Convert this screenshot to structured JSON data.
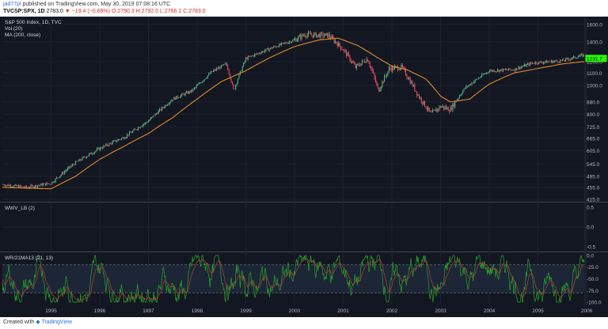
{
  "header": {
    "user": "jad77pl",
    "published": " published on TradingView.com, May 30, 2019 07:08:16 UTC",
    "symbol": "TVCSP:SPX, 1D",
    "last": "2783.0",
    "change": "▼ −19.4 (−0.69%)",
    "ohlc": "O:2790.3 H:2792.0 L:2766.1 C:2783.0"
  },
  "footer": {
    "created_with": "Created with",
    "brand": "TradingView"
  },
  "panes": {
    "main": {
      "legend": [
        "S&P 500 Index, 1D, TVC",
        "Vol (20)",
        "MA (200, close)"
      ]
    },
    "wwv": {
      "legend": "WWV_LB (2)"
    },
    "wr": {
      "legend": "WR/21MA13 (21, 13)"
    }
  },
  "colors": {
    "background": "#131722",
    "up_candle": "#53b987",
    "down_candle": "#eb4d5c",
    "ma_line": "#e08a2a",
    "price_badge": "#26ff00",
    "osc_green": "#29a329",
    "osc_red": "#c23a3a"
  },
  "chart_data": [
    {
      "type": "line",
      "title": "S&P 500 Index, 1D, TVC",
      "scale": "log",
      "y_ticks": [
        1600.0,
        1400.0,
        1200.0,
        1100.0,
        1000.0,
        880.0,
        800.0,
        725.0,
        665.0,
        605.0,
        545.0,
        495.0,
        455.0,
        415.0
      ],
      "x_ticks": [
        "1995",
        "1996",
        "1997",
        "1998",
        "1999",
        "2000",
        "2001",
        "2002",
        "2003",
        "2004",
        "2005",
        "2006"
      ],
      "last_price_label": "1231.7",
      "series": [
        {
          "name": "S&P 500 Index",
          "x": [
            1994.0,
            1994.5,
            1995.0,
            1995.5,
            1996.0,
            1996.5,
            1997.0,
            1997.5,
            1997.9,
            1998.3,
            1998.6,
            1998.75,
            1999.0,
            1999.5,
            2000.0,
            2000.2,
            2000.7,
            2001.0,
            2001.25,
            2001.5,
            2001.72,
            2001.95,
            2002.2,
            2002.55,
            2002.8,
            2003.0,
            2003.2,
            2003.5,
            2004.0,
            2004.5,
            2004.9,
            2005.5,
            2005.9
          ],
          "values": [
            465,
            455,
            470,
            550,
            615,
            670,
            760,
            900,
            960,
            1110,
            1180,
            960,
            1230,
            1330,
            1420,
            1480,
            1470,
            1320,
            1150,
            1230,
            960,
            1140,
            1150,
            920,
            800,
            850,
            830,
            980,
            1120,
            1130,
            1190,
            1210,
            1260
          ]
        },
        {
          "name": "MA (200, close)",
          "x": [
            1994.0,
            1995.0,
            1995.5,
            1996.0,
            1996.5,
            1997.0,
            1997.5,
            1998.0,
            1998.5,
            1999.0,
            1999.5,
            2000.0,
            2000.5,
            2000.9,
            2001.3,
            2001.7,
            2002.0,
            2002.3,
            2002.7,
            2003.0,
            2003.2,
            2003.6,
            2004.0,
            2004.5,
            2005.0,
            2005.5,
            2005.9
          ],
          "values": [
            455,
            450,
            495,
            565,
            625,
            690,
            780,
            900,
            1030,
            1120,
            1240,
            1350,
            1420,
            1440,
            1360,
            1240,
            1160,
            1130,
            1050,
            920,
            880,
            900,
            1010,
            1100,
            1140,
            1180,
            1200
          ]
        }
      ]
    },
    {
      "type": "line",
      "title": "WWV_LB (2)",
      "y_ticks": [
        0.5,
        0.0,
        -0.5
      ],
      "series": [
        {
          "name": "WWV_LB (2)",
          "x": [
            1994.0,
            2005.9
          ],
          "values": [
            0,
            0
          ]
        }
      ]
    },
    {
      "type": "area",
      "title": "WR/21MA13 (21, 13)",
      "y_ticks": [
        0.0,
        -25.0,
        -50.0,
        -75.0,
        -100.0
      ],
      "levels": [
        -20,
        -80
      ]
    }
  ]
}
